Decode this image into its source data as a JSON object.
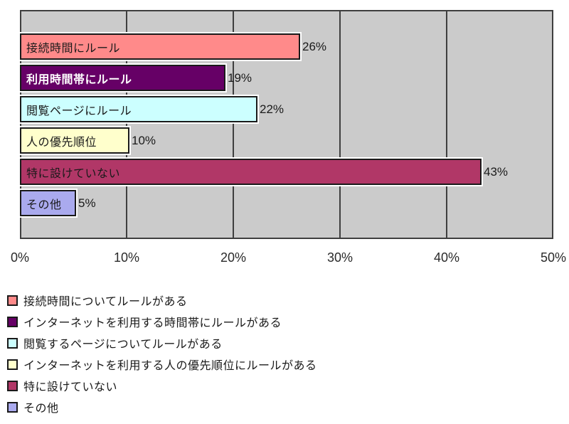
{
  "chart_data": {
    "type": "bar",
    "orientation": "horizontal",
    "title": "",
    "xlabel": "",
    "ylabel": "",
    "xlim": [
      0,
      50
    ],
    "x_ticks": [
      "0%",
      "10%",
      "20%",
      "30%",
      "40%",
      "50%"
    ],
    "grid": true,
    "legend_position": "bottom",
    "bars": [
      {
        "label": "接続時間にルール",
        "value": 26,
        "value_label": "26%",
        "color": "#ff8a8a",
        "text_color": "#1a1a1a",
        "bold": false,
        "legend": "接続時間についてルールがある"
      },
      {
        "label": "利用時間帯にルール",
        "value": 19,
        "value_label": "19%",
        "color": "#660066",
        "text_color": "#ffffff",
        "bold": true,
        "legend": "インターネットを利用する時間帯にルールがある"
      },
      {
        "label": "閲覧ページにルール",
        "value": 22,
        "value_label": "22%",
        "color": "#ccffff",
        "text_color": "#1a1a1a",
        "bold": false,
        "legend": "閲覧するページについてルールがある"
      },
      {
        "label": "人の優先順位",
        "value": 10,
        "value_label": "10%",
        "color": "#ffffcc",
        "text_color": "#1a1a1a",
        "bold": false,
        "legend": "インターネットを利用する人の優先順位にルールがある"
      },
      {
        "label": "特に設けていない",
        "value": 43,
        "value_label": "43%",
        "color": "#b13767",
        "text_color": "#1a1a1a",
        "bold": false,
        "legend": "特に設けていない"
      },
      {
        "label": "その他",
        "value": 5,
        "value_label": "5%",
        "color": "#aaaaee",
        "text_color": "#1a1a1a",
        "bold": false,
        "legend": "その他"
      }
    ],
    "colors": {
      "plot_bg": "#cbcbcb",
      "grid": "#3f3f3f",
      "plot_border": "#3f3f3f",
      "bar_border": "#1a1a1a",
      "bar_halo": "#ffffff",
      "page_bg": "#ffffff"
    }
  }
}
